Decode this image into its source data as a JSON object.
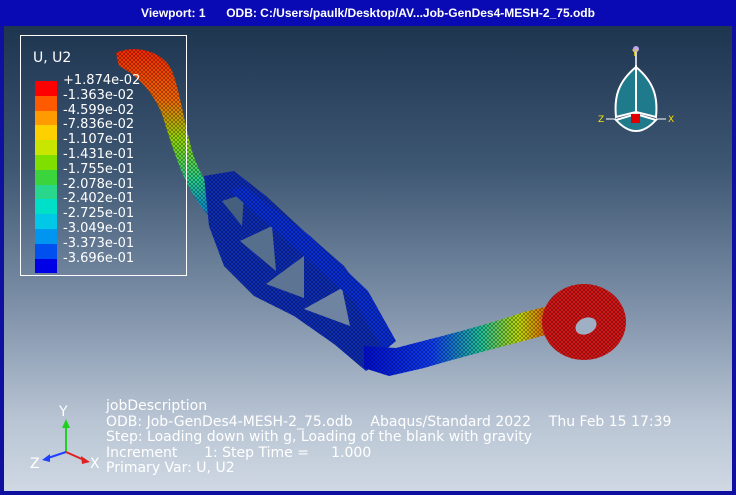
{
  "window": {
    "viewport_label": "Viewport: 1",
    "odb_label": "ODB: C:/Users/paulk/Desktop/AV...Job-GenDes4-MESH-2_75.odb"
  },
  "legend": {
    "title": "U, U2",
    "entries": [
      {
        "label": "+1.874e-02",
        "color": "#ff0000"
      },
      {
        "label": "-1.363e-02",
        "color": "#ff5a00"
      },
      {
        "label": "-4.599e-02",
        "color": "#ff9a00"
      },
      {
        "label": "-7.836e-02",
        "color": "#ffd000"
      },
      {
        "label": "-1.107e-01",
        "color": "#c8e600"
      },
      {
        "label": "-1.431e-01",
        "color": "#7fe000"
      },
      {
        "label": "-1.755e-01",
        "color": "#3cd43c"
      },
      {
        "label": "-2.078e-01",
        "color": "#28d78c"
      },
      {
        "label": "-2.402e-01",
        "color": "#00e0c8"
      },
      {
        "label": "-2.725e-01",
        "color": "#00c8e6"
      },
      {
        "label": "-3.049e-01",
        "color": "#0096f0"
      },
      {
        "label": "-3.373e-01",
        "color": "#0050f0"
      },
      {
        "label": "-3.696e-01",
        "color": "#0000e6"
      }
    ]
  },
  "info": {
    "line1": "jobDescription",
    "line2": "ODB: Job-GenDes4-MESH-2_75.odb    Abaqus/Standard 2022    Thu Feb 15 17:39",
    "line3": "Step: Loading down with g, Loading of the blank with gravity",
    "line4": "Increment      1: Step Time =     1.000",
    "line5": "Primary Var: U, U2"
  },
  "triad": {
    "x_label": "X",
    "y_label": "Y",
    "z_label": "Z"
  },
  "colors": {
    "titlebar": "#0a0ab4",
    "frame": "#1010a0"
  }
}
